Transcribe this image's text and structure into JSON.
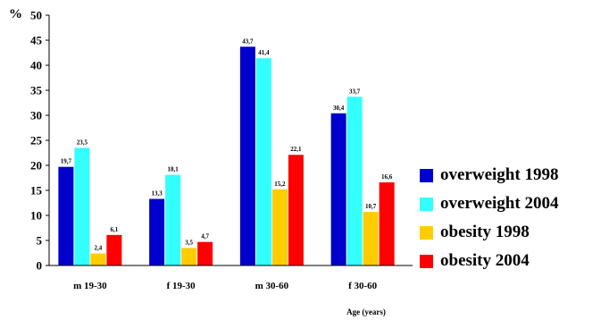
{
  "chart_data": {
    "type": "bar",
    "categories": [
      "m 19-30",
      "f 19-30",
      "m 30-60",
      "f 30-60"
    ],
    "series": [
      {
        "name": "overweight 1998",
        "color": "#0000cc",
        "values": [
          19.7,
          13.3,
          43.7,
          30.4
        ],
        "labels": [
          "19,7",
          "13,3",
          "43,7",
          "30,4"
        ]
      },
      {
        "name": "overweight 2004",
        "color": "#33ffff",
        "values": [
          23.5,
          18.1,
          41.4,
          33.7
        ],
        "labels": [
          "23,5",
          "18,1",
          "41,4",
          "33,7"
        ]
      },
      {
        "name": "obesity 1998",
        "color": "#ffcc00",
        "values": [
          2.4,
          3.5,
          15.2,
          10.7
        ],
        "labels": [
          "2,4",
          "3,5",
          "15,2",
          "10,7"
        ]
      },
      {
        "name": "obesity 2004",
        "color": "#ff0000",
        "values": [
          6.1,
          4.7,
          22.1,
          16.6
        ],
        "labels": [
          "6,1",
          "4,7",
          "22,1",
          "16,6"
        ]
      }
    ],
    "yticks": [
      "0",
      "5",
      "10",
      "15",
      "20",
      "25",
      "30",
      "35",
      "40",
      "45",
      "50"
    ],
    "ylim": [
      0,
      50
    ],
    "ylabel": "%",
    "xlabel": "Age (years)",
    "grid": false,
    "legend_position": "right"
  }
}
